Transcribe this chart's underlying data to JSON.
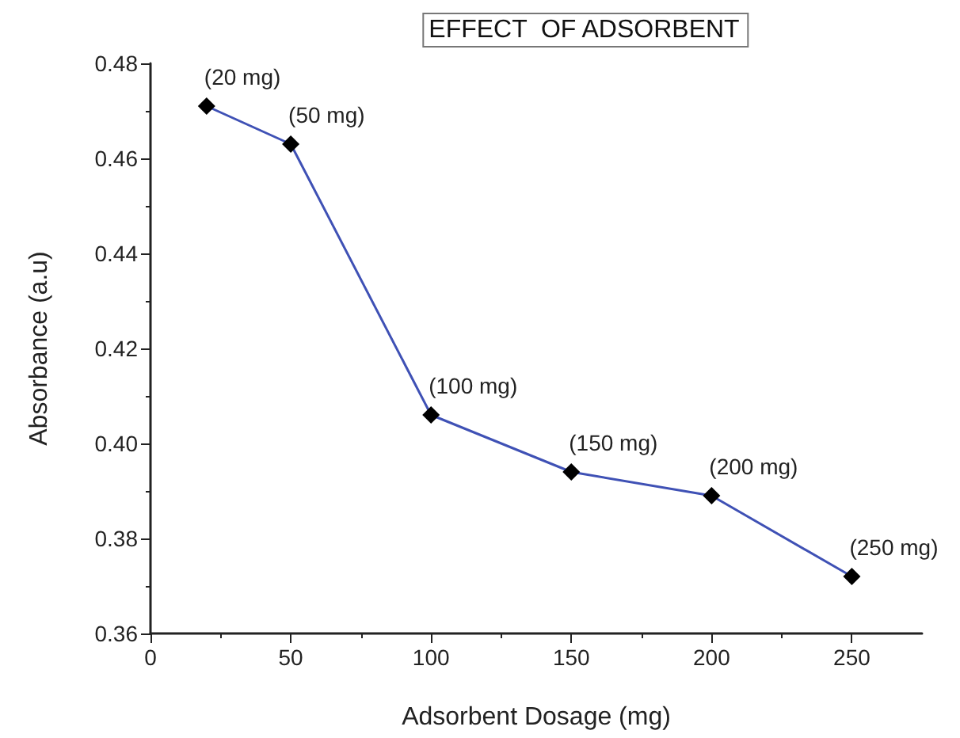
{
  "chart_data": {
    "type": "line",
    "title": "EFFECT  OF ADSORBENT",
    "xlabel": "Adsorbent Dosage (mg)",
    "ylabel": "Absorbance (a.u)",
    "x": [
      20,
      50,
      100,
      150,
      200,
      250
    ],
    "series": [
      {
        "color": "#3f51b5",
        "values": [
          0.471,
          0.463,
          0.406,
          0.394,
          0.389,
          0.372
        ]
      }
    ],
    "marker": "diamond",
    "line_style": "solid",
    "grid": false,
    "xlim": [
      0,
      275
    ],
    "xticks": [
      0,
      50,
      100,
      150,
      200,
      250
    ],
    "ylim": [
      0.36,
      0.48
    ],
    "yticks": [
      0.36,
      0.38,
      {
        "value": 0.4,
        "label": "0.40"
      },
      0.42,
      0.44,
      0.46,
      0.48
    ],
    "annotations": [
      {
        "text": "(20 mg)",
        "x": 20,
        "y": 0.471
      },
      {
        "text": "(50 mg)",
        "x": 50,
        "y": 0.463
      },
      {
        "text": "(100 mg)",
        "x": 100,
        "y": 0.406
      },
      {
        "text": "(150 mg)",
        "x": 150,
        "y": 0.394
      },
      {
        "text": "(200 mg)",
        "x": 200,
        "y": 0.389
      },
      {
        "text": "(250 mg)",
        "x": 250,
        "y": 0.372
      }
    ]
  }
}
